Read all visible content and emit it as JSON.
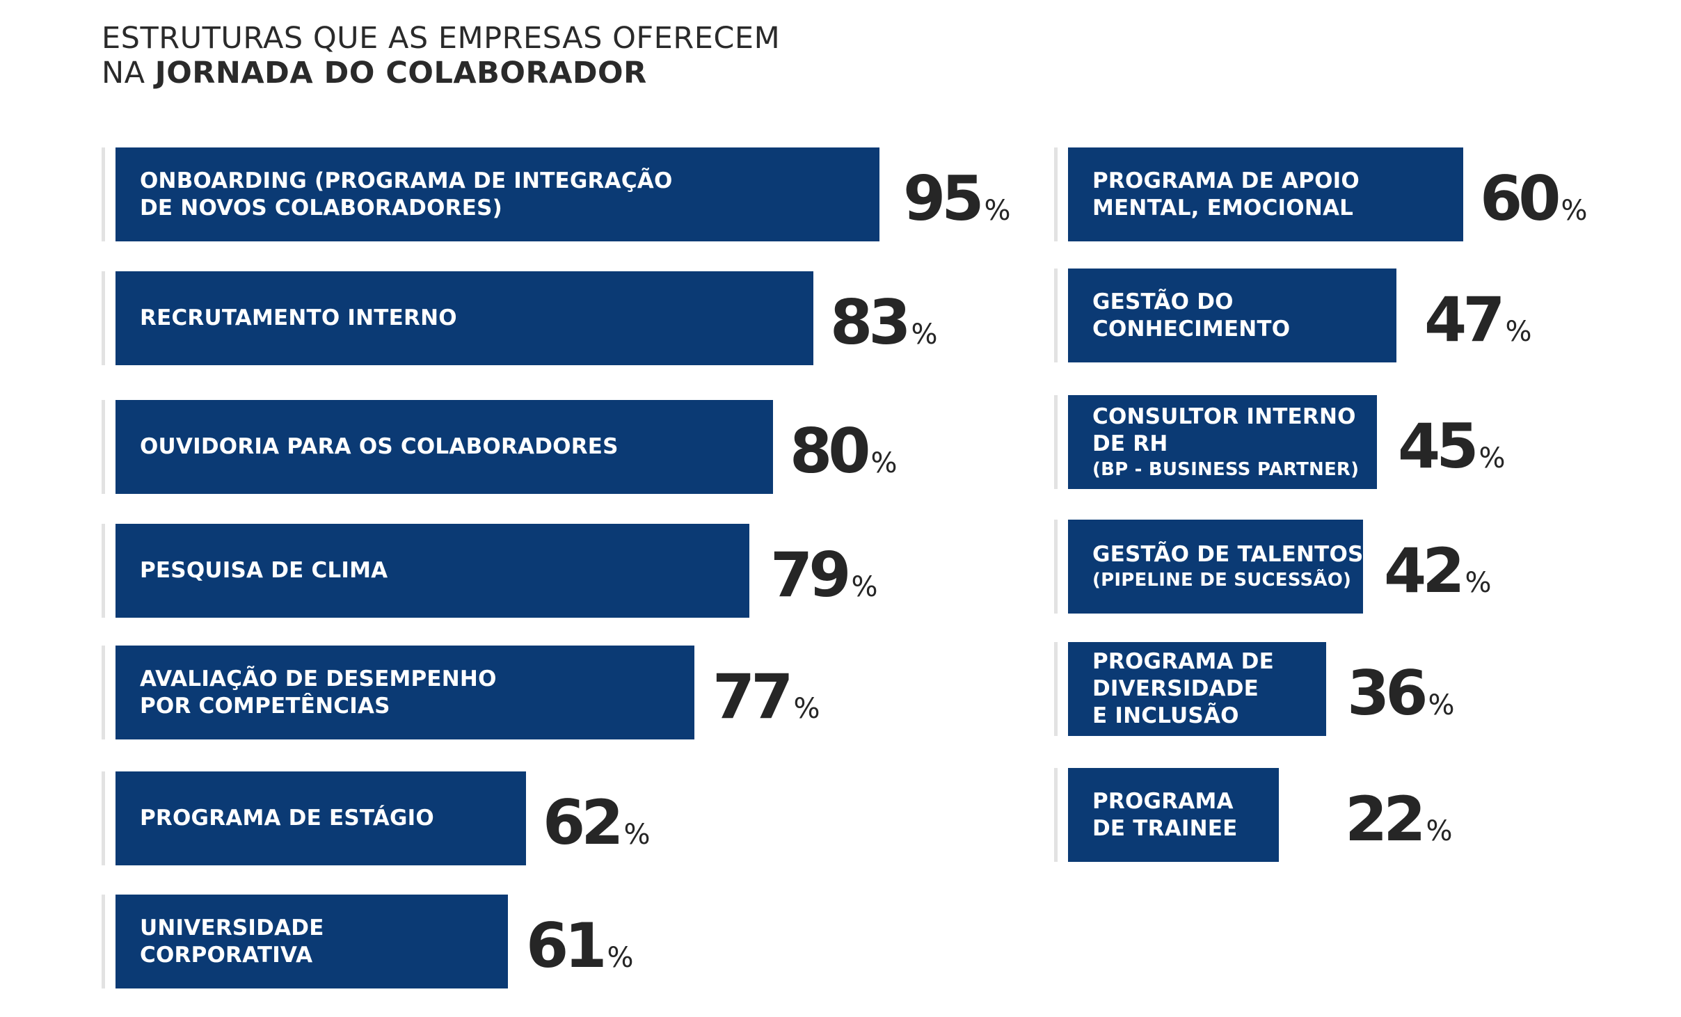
{
  "title": {
    "line1": "ESTRUTURAS QUE AS EMPRESAS OFERECEM",
    "line2_prefix": "NA ",
    "line2_bold": "JORNADA DO COLABORADOR"
  },
  "colors": {
    "bar": "#0b3a74",
    "value_text": "#262626",
    "rule": "#e2e2e2"
  },
  "chart_data": {
    "type": "bar",
    "orientation": "horizontal",
    "title": "ESTRUTURAS QUE AS EMPRESAS OFERECEM NA JORNADA DO COLABORADOR",
    "unit": "%",
    "left": [
      {
        "lines": [
          "ONBOARDING (PROGRAMA DE INTEGRAÇÃO",
          "DE NOVOS COLABORADORES)"
        ],
        "value": 95
      },
      {
        "lines": [
          "RECRUTAMENTO INTERNO"
        ],
        "value": 83
      },
      {
        "lines": [
          "OUVIDORIA PARA OS COLABORADORES"
        ],
        "value": 80
      },
      {
        "lines": [
          "PESQUISA DE CLIMA"
        ],
        "value": 79
      },
      {
        "lines": [
          "AVALIAÇÃO DE DESEMPENHO",
          "POR COMPETÊNCIAS"
        ],
        "value": 77
      },
      {
        "lines": [
          "PROGRAMA DE ESTÁGIO"
        ],
        "value": 62
      },
      {
        "lines": [
          "UNIVERSIDADE",
          "CORPORATIVA"
        ],
        "value": 61
      }
    ],
    "right": [
      {
        "lines": [
          "PROGRAMA DE APOIO",
          "MENTAL, EMOCIONAL"
        ],
        "value": 60
      },
      {
        "lines": [
          "GESTÃO DO",
          "CONHECIMENTO"
        ],
        "value": 47
      },
      {
        "lines": [
          "CONSULTOR INTERNO",
          "DE RH",
          "(BP - BUSINESS PARTNER)"
        ],
        "value": 45
      },
      {
        "lines": [
          "GESTÃO DE TALENTOS",
          "(PIPELINE DE SUCESSÃO)"
        ],
        "value": 42
      },
      {
        "lines": [
          "PROGRAMA DE",
          "DIVERSIDADE",
          "E INCLUSÃO"
        ],
        "value": 36
      },
      {
        "lines": [
          "PROGRAMA",
          "DE TRAINEE"
        ],
        "value": 22
      }
    ]
  }
}
